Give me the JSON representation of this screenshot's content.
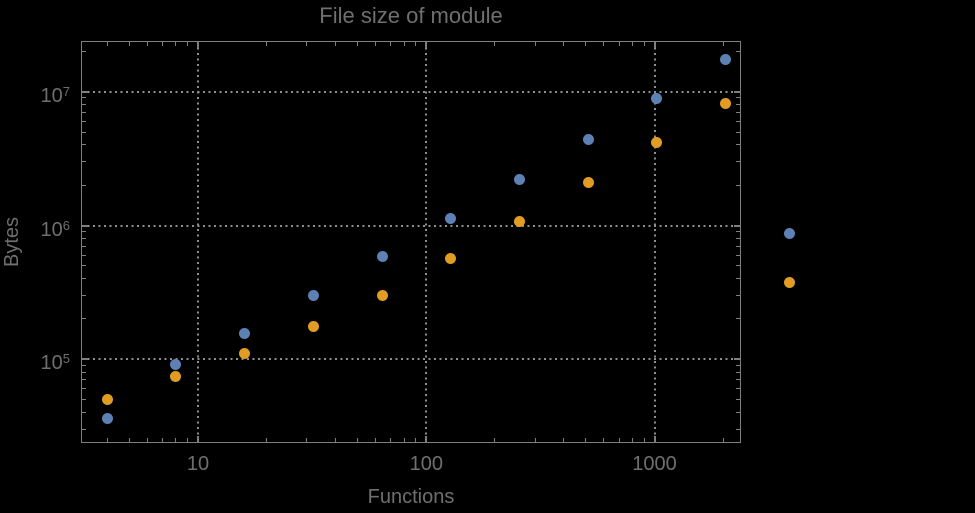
{
  "title": "File size of module",
  "axes": {
    "xlabel": "Functions",
    "ylabel": "Bytes"
  },
  "colors": {
    "background": "#000000",
    "frame": "#7f7f7f",
    "grid": "#8f8f8f",
    "text": "#6f6f6f",
    "series_blue": "#5e81b5",
    "series_orange": "#e19c24"
  },
  "chart_data": {
    "type": "scatter",
    "title": "File size of module",
    "xlabel": "Functions",
    "ylabel": "Bytes",
    "xscale": "log",
    "yscale": "log",
    "xlim": [
      3.07,
      2393
    ],
    "ylim": [
      23650,
      23960000
    ],
    "grid": "dotted gridlines at decades",
    "legend": "none",
    "x": [
      4,
      8,
      16,
      32,
      64,
      128,
      256,
      512,
      1024,
      2048,
      3900
    ],
    "series": [
      {
        "name": "blue",
        "color": "#5e81b5",
        "values": [
          35800,
          90600,
          157000,
          302000,
          582000,
          1120000,
          2190000,
          4410000,
          8830000,
          17500000,
          864000
        ]
      },
      {
        "name": "orange",
        "color": "#e19c24",
        "values": [
          50400,
          73700,
          111000,
          177000,
          302000,
          562000,
          1070000,
          2090000,
          4160000,
          8200000,
          378000
        ]
      }
    ],
    "x_ticks": [
      {
        "value": 10,
        "label": "10"
      },
      {
        "value": 100,
        "label": "100"
      },
      {
        "value": 1000,
        "label": "1000"
      }
    ],
    "y_ticks": [
      {
        "value": 100000,
        "base": "10",
        "exp": "5"
      },
      {
        "value": 1000000,
        "base": "10",
        "exp": "6"
      },
      {
        "value": 10000000,
        "base": "10",
        "exp": "7"
      }
    ]
  }
}
